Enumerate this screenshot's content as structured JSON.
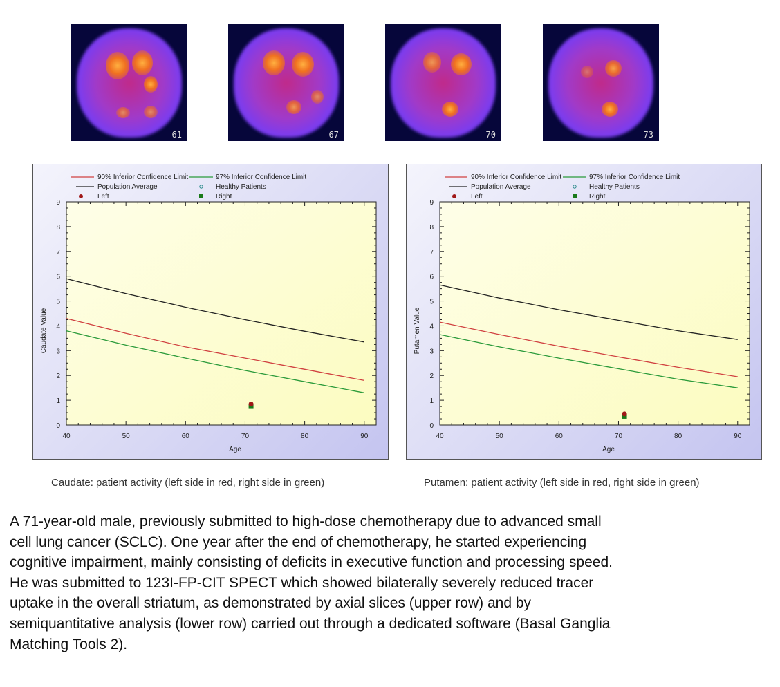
{
  "slices": [
    {
      "number": "61"
    },
    {
      "number": "67"
    },
    {
      "number": "70"
    },
    {
      "number": "73"
    }
  ],
  "legend": {
    "ci90": "90% Inferior Confidence Limit",
    "ci97": "97% Inferior Confidence Limit",
    "avg": "Population Average",
    "healthy": "Healthy Patients",
    "left": "Left",
    "right": "Right"
  },
  "colors": {
    "ci90": "#d04040",
    "ci97": "#2a9a3a",
    "avg": "#222222",
    "left": "#a01818",
    "right": "#1a7a1a",
    "healthy": "#2a8a8a"
  },
  "chart_data": [
    {
      "type": "line",
      "xlabel": "Age",
      "ylabel": "Caudate Value",
      "xlim": [
        40,
        92
      ],
      "ylim": [
        0,
        9
      ],
      "xticks": [
        40,
        50,
        60,
        70,
        80,
        90
      ],
      "yticks": [
        0,
        1,
        2,
        3,
        4,
        5,
        6,
        7,
        8,
        9
      ],
      "grid": false,
      "legend_position": "top",
      "x": [
        40,
        50,
        60,
        70,
        80,
        90
      ],
      "series": [
        {
          "name": "Population Average",
          "key": "avg",
          "values": [
            5.9,
            5.3,
            4.75,
            4.25,
            3.78,
            3.35
          ]
        },
        {
          "name": "90% Inferior Confidence Limit",
          "key": "ci90",
          "values": [
            4.3,
            3.7,
            3.15,
            2.7,
            2.25,
            1.8
          ]
        },
        {
          "name": "97% Inferior Confidence Limit",
          "key": "ci97",
          "values": [
            3.8,
            3.22,
            2.7,
            2.2,
            1.75,
            1.3
          ]
        }
      ],
      "points": [
        {
          "name": "Right",
          "key": "right",
          "x": 71,
          "y": 0.75
        },
        {
          "name": "Left",
          "key": "left",
          "x": 71,
          "y": 0.85
        }
      ],
      "caption": "Caudate: patient activity (left side in red, right side in green)"
    },
    {
      "type": "line",
      "xlabel": "Age",
      "ylabel": "Putamen Value",
      "xlim": [
        40,
        92
      ],
      "ylim": [
        0,
        9
      ],
      "xticks": [
        40,
        50,
        60,
        70,
        80,
        90
      ],
      "yticks": [
        0,
        1,
        2,
        3,
        4,
        5,
        6,
        7,
        8,
        9
      ],
      "grid": false,
      "legend_position": "top",
      "x": [
        40,
        50,
        60,
        70,
        80,
        90
      ],
      "series": [
        {
          "name": "Population Average",
          "key": "avg",
          "values": [
            5.65,
            5.12,
            4.65,
            4.22,
            3.8,
            3.45
          ]
        },
        {
          "name": "90% Inferior Confidence Limit",
          "key": "ci90",
          "values": [
            4.15,
            3.65,
            3.18,
            2.75,
            2.33,
            1.95
          ]
        },
        {
          "name": "97% Inferior Confidence Limit",
          "key": "ci97",
          "values": [
            3.65,
            3.15,
            2.7,
            2.27,
            1.85,
            1.5
          ]
        }
      ],
      "points": [
        {
          "name": "Right",
          "key": "right",
          "x": 71,
          "y": 0.35
        },
        {
          "name": "Left",
          "key": "left",
          "x": 71,
          "y": 0.45
        }
      ],
      "caption": "Putamen: patient activity (left side in red, right side in green)"
    }
  ],
  "description_lines": [
    "A 71-year-old male, previously submitted to high-dose chemotherapy due to advanced small",
    "cell lung cancer (SCLC). One year after the end of chemotherapy, he started experiencing",
    "cognitive impairment, mainly consisting of deficits in executive function and processing speed.",
    "He was submitted to 123I-FP-CIT SPECT which showed bilaterally severely reduced tracer",
    "uptake in the overall striatum, as demonstrated by axial slices (upper row) and by",
    "semiquantitative analysis (lower row) carried out through a dedicated software (Basal Ganglia",
    "Matching Tools 2)."
  ]
}
